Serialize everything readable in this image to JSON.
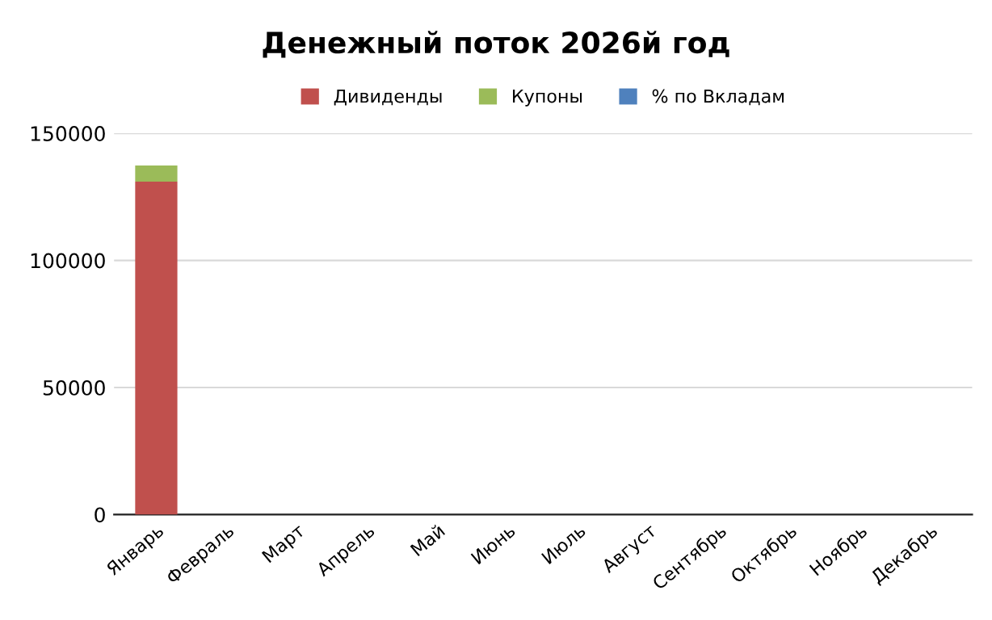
{
  "chart_data": {
    "type": "bar",
    "title": "Денежный поток 2026й год",
    "stacked": true,
    "categories": [
      "Январь",
      "Февраль",
      "Март",
      "Апрель",
      "Май",
      "Июнь",
      "Июль",
      "Август",
      "Сентябрь",
      "Октябрь",
      "Ноябрь",
      "Декабрь"
    ],
    "series": [
      {
        "name": "Дивиденды",
        "color": "#c0504d",
        "values": [
          131000,
          0,
          0,
          0,
          0,
          0,
          0,
          0,
          0,
          0,
          0,
          0
        ]
      },
      {
        "name": "Купоны",
        "color": "#9bbb59",
        "values": [
          6300,
          0,
          0,
          0,
          0,
          0,
          0,
          0,
          0,
          0,
          0,
          0
        ]
      },
      {
        "name": "% по Вкладам",
        "color": "#4f81bd",
        "values": [
          0,
          0,
          0,
          0,
          0,
          0,
          0,
          0,
          0,
          0,
          0,
          0
        ]
      }
    ],
    "ylim": [
      0,
      150000
    ],
    "yticks": [
      0,
      50000,
      100000,
      150000
    ],
    "grid": "y",
    "legend": "top"
  }
}
